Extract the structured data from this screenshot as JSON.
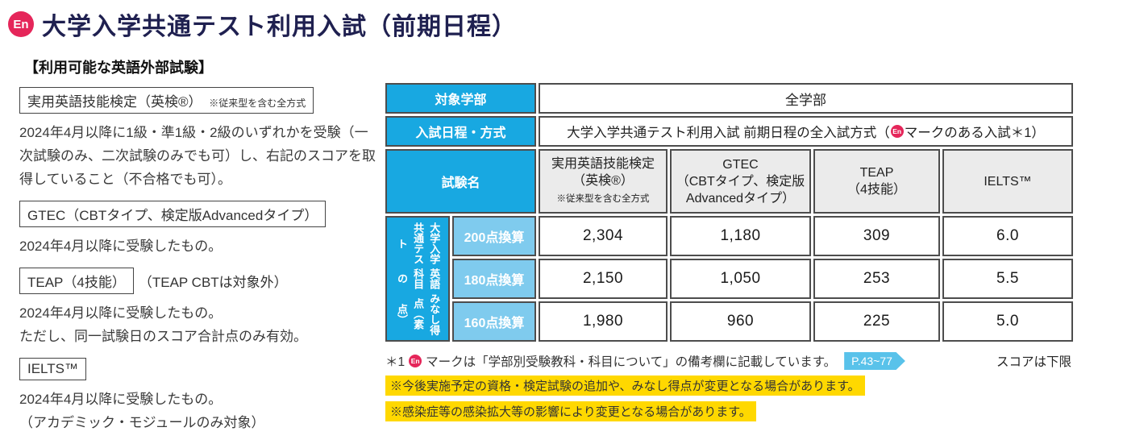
{
  "page": {
    "badge": "En",
    "title": "大学入学共通テスト利用入試（前期日程）",
    "subtitle": "【利用可能な英語外部試験】"
  },
  "left_panel": {
    "items": [
      {
        "box": "実用英語技能検定（英検®）",
        "box_note": "※従来型を含む全方式",
        "desc": "2024年4月以降に1級・準1級・2級のいずれかを受験（一次試験のみ、二次試験のみでも可）し、右記のスコアを取得していること（不合格でも可）。"
      },
      {
        "box": "GTEC（CBTタイプ、検定版Advancedタイプ）",
        "desc": "2024年4月以降に受験したもの。"
      },
      {
        "box": "TEAP（4技能）",
        "side_note": "（TEAP CBTは対象外）",
        "desc": "2024年4月以降に受験したもの。\nただし、同一試験日のスコア合計点のみ有効。"
      },
      {
        "box": "IELTS™",
        "desc": "2024年4月以降に受験したもの。\n（アカデミック・モジュールのみ対象）"
      }
    ]
  },
  "table": {
    "target_label": "対象学部",
    "target_value": "全学部",
    "schedule_label": "入試日程・方式",
    "schedule_pre": "大学入学共通テスト利用入試 前期日程の全入試方式（",
    "schedule_badge": "En",
    "schedule_post": "マークのある入試＊1）",
    "exam_label": "試験名",
    "exam_columns": [
      {
        "name": "実用英語技能検定\n（英検®）",
        "note": "※従来型を含む全方式"
      },
      {
        "name": "GTEC\n（CBTタイプ、検定版\nAdvancedタイプ）",
        "note": ""
      },
      {
        "name": "TEAP\n（4技能）",
        "note": ""
      },
      {
        "name": "IELTS™",
        "note": ""
      }
    ],
    "vertical_header": {
      "line1": "大学入学共通テスト",
      "line2": "英語科目の",
      "line3": "みなし得点（素点）"
    },
    "score_rows": [
      {
        "label": "200点換算",
        "values": [
          "2,304",
          "1,180",
          "309",
          "6.0"
        ]
      },
      {
        "label": "180点換算",
        "values": [
          "2,150",
          "1,050",
          "253",
          "5.5"
        ]
      },
      {
        "label": "160点換算",
        "values": [
          "1,980",
          "960",
          "225",
          "5.0"
        ]
      }
    ]
  },
  "footnotes": {
    "note1_pre": "＊1",
    "note1_badge": "En",
    "note1_text": "マークは「学部別受験教科・科目について」の備考欄に記載しています。",
    "page_badge": "P.43~77",
    "score_note": "スコアは下限",
    "warning1": "※今後実施予定の資格・検定試験の追加や、みなし得点が変更となる場合があります。",
    "warning2": "※感染症等の感染拡大等の影響により変更となる場合があります。"
  },
  "colors": {
    "accent_cyan": "#18A8E1",
    "light_blue": "#7FCBEE",
    "badge_pink": "#E5265A",
    "highlight_yellow": "#FFD800",
    "header_gray": "#EBEBEB",
    "title_navy": "#1F2050",
    "border_dark": "#4D4D4D",
    "page_badge_cyan": "#59C2EA"
  }
}
